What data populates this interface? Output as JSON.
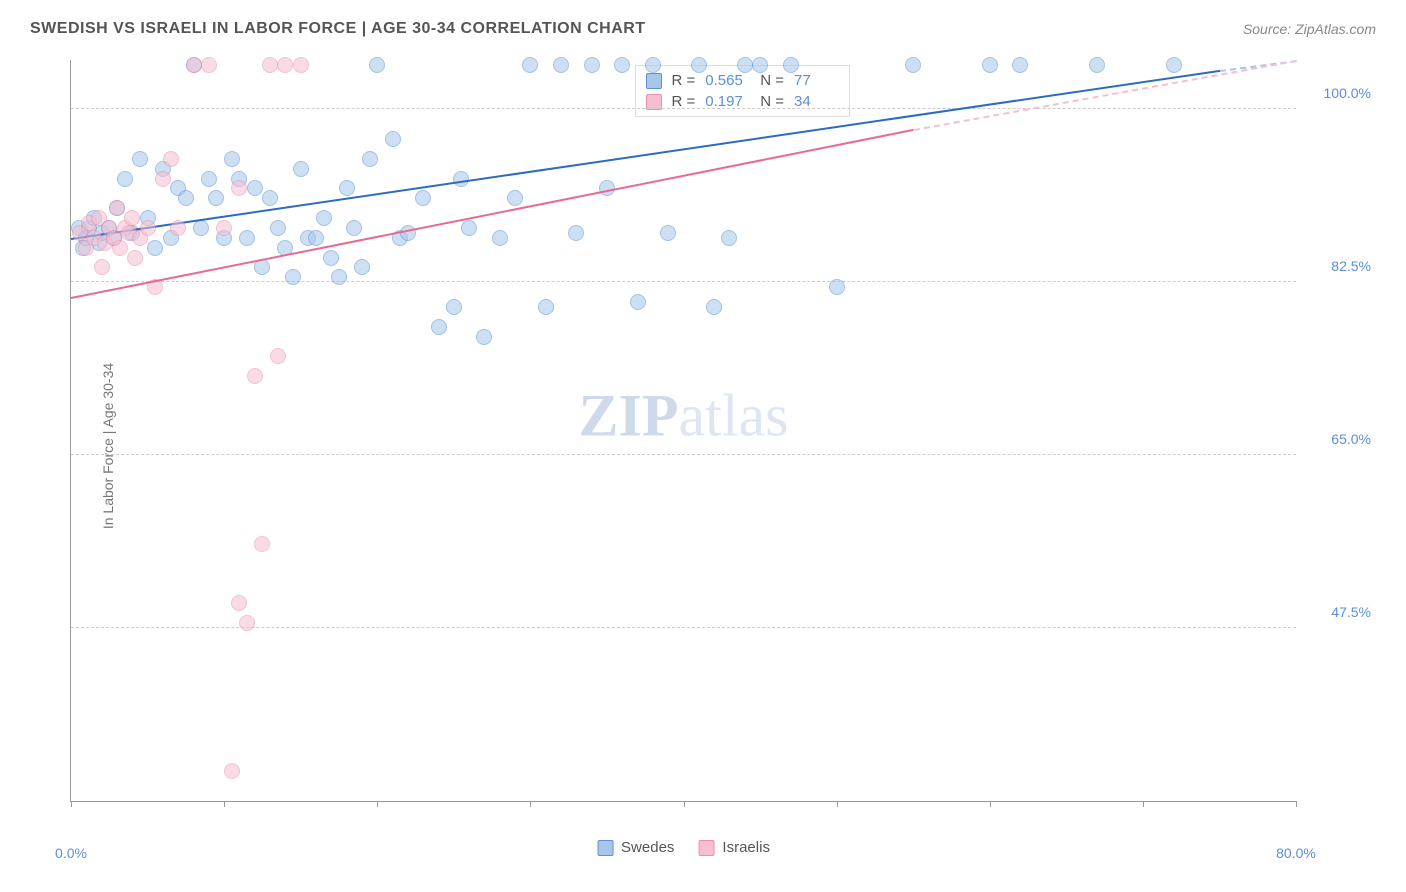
{
  "header": {
    "title": "SWEDISH VS ISRAELI IN LABOR FORCE | AGE 30-34 CORRELATION CHART",
    "source": "Source: ZipAtlas.com"
  },
  "chart": {
    "type": "scatter",
    "ylabel": "In Labor Force | Age 30-34",
    "xlim": [
      0,
      80
    ],
    "ylim": [
      30,
      105
    ],
    "xticks": [
      0,
      10,
      20,
      30,
      40,
      50,
      60,
      70,
      80
    ],
    "xtick_labels": {
      "0": "0.0%",
      "80": "80.0%"
    },
    "yticks": [
      47.5,
      65.0,
      82.5,
      100.0
    ],
    "ytick_labels": [
      "47.5%",
      "65.0%",
      "82.5%",
      "100.0%"
    ],
    "background_color": "#ffffff",
    "grid_color": "#cccccc",
    "series": [
      {
        "name": "Swedes",
        "fill_color": "#a6c6ea",
        "stroke_color": "#5b8fd6",
        "fill_opacity": 0.55,
        "marker_radius": 8,
        "trend_color": "#2e6bc0",
        "trend_dash_color": "#a6c6ea",
        "R": "0.565",
        "N": "77",
        "trend": {
          "x1": 0,
          "y1": 87,
          "x2": 75,
          "y2": 104
        },
        "dash": {
          "x1": 75,
          "y1": 104,
          "x2": 80,
          "y2": 105
        },
        "points": [
          [
            0.5,
            88
          ],
          [
            0.8,
            86
          ],
          [
            1,
            87
          ],
          [
            1.2,
            88
          ],
          [
            1.5,
            89
          ],
          [
            1.8,
            86.5
          ],
          [
            2,
            87.5
          ],
          [
            2.5,
            88
          ],
          [
            2.8,
            87
          ],
          [
            3,
            90
          ],
          [
            3.5,
            93
          ],
          [
            4,
            87.5
          ],
          [
            4.5,
            95
          ],
          [
            5,
            89
          ],
          [
            5.5,
            86
          ],
          [
            6,
            94
          ],
          [
            6.5,
            87
          ],
          [
            7,
            92
          ],
          [
            7.5,
            91
          ],
          [
            8,
            104.5
          ],
          [
            8.5,
            88
          ],
          [
            9,
            93
          ],
          [
            9.5,
            91
          ],
          [
            10,
            87
          ],
          [
            10.5,
            95
          ],
          [
            11,
            93
          ],
          [
            11.5,
            87
          ],
          [
            12,
            92
          ],
          [
            12.5,
            84
          ],
          [
            13,
            91
          ],
          [
            13.5,
            88
          ],
          [
            14,
            86
          ],
          [
            14.5,
            83
          ],
          [
            15,
            94
          ],
          [
            15.5,
            87
          ],
          [
            16,
            87
          ],
          [
            16.5,
            89
          ],
          [
            17,
            85
          ],
          [
            17.5,
            83
          ],
          [
            18,
            92
          ],
          [
            18.5,
            88
          ],
          [
            19,
            84
          ],
          [
            19.5,
            95
          ],
          [
            20,
            104.5
          ],
          [
            21,
            97
          ],
          [
            21.5,
            87
          ],
          [
            22,
            87.5
          ],
          [
            23,
            91
          ],
          [
            24,
            78
          ],
          [
            25,
            80
          ],
          [
            25.5,
            93
          ],
          [
            26,
            88
          ],
          [
            27,
            77
          ],
          [
            28,
            87
          ],
          [
            29,
            91
          ],
          [
            30,
            104.5
          ],
          [
            31,
            80
          ],
          [
            32,
            104.5
          ],
          [
            33,
            87.5
          ],
          [
            34,
            104.5
          ],
          [
            35,
            92
          ],
          [
            36,
            104.5
          ],
          [
            37,
            80.5
          ],
          [
            38,
            104.5
          ],
          [
            39,
            87.5
          ],
          [
            41,
            104.5
          ],
          [
            42,
            80
          ],
          [
            43,
            87
          ],
          [
            44,
            104.5
          ],
          [
            45,
            104.5
          ],
          [
            47,
            104.5
          ],
          [
            50,
            82
          ],
          [
            55,
            104.5
          ],
          [
            60,
            104.5
          ],
          [
            62,
            104.5
          ],
          [
            67,
            104.5
          ],
          [
            72,
            104.5
          ]
        ]
      },
      {
        "name": "Israelis",
        "fill_color": "#f5bfd0",
        "stroke_color": "#e98fae",
        "fill_opacity": 0.55,
        "marker_radius": 8,
        "trend_color": "#e86a93",
        "trend_dash_color": "#f5bfd0",
        "R": "0.197",
        "N": "34",
        "trend": {
          "x1": 0,
          "y1": 81,
          "x2": 55,
          "y2": 98
        },
        "dash": {
          "x1": 55,
          "y1": 98,
          "x2": 80,
          "y2": 105
        },
        "points": [
          [
            0.6,
            87.5
          ],
          [
            1,
            86
          ],
          [
            1.2,
            88.5
          ],
          [
            1.5,
            87
          ],
          [
            1.8,
            89
          ],
          [
            2,
            84
          ],
          [
            2.2,
            86.5
          ],
          [
            2.5,
            88
          ],
          [
            2.8,
            87
          ],
          [
            3,
            90
          ],
          [
            3.2,
            86
          ],
          [
            3.5,
            88
          ],
          [
            3.8,
            87.5
          ],
          [
            4,
            89
          ],
          [
            4.2,
            85
          ],
          [
            4.5,
            87
          ],
          [
            5,
            88
          ],
          [
            5.5,
            82
          ],
          [
            6,
            93
          ],
          [
            6.5,
            95
          ],
          [
            7,
            88
          ],
          [
            8,
            104.5
          ],
          [
            9,
            104.5
          ],
          [
            10,
            88
          ],
          [
            11,
            92
          ],
          [
            13,
            104.5
          ],
          [
            10.5,
            33
          ],
          [
            11,
            50
          ],
          [
            11.5,
            48
          ],
          [
            12,
            73
          ],
          [
            12.5,
            56
          ],
          [
            13.5,
            75
          ],
          [
            14,
            104.5
          ],
          [
            15,
            104.5
          ]
        ]
      }
    ],
    "stats_labels": {
      "r": "R =",
      "n": "N ="
    },
    "watermark": {
      "bold": "ZIP",
      "light": "atlas"
    }
  }
}
